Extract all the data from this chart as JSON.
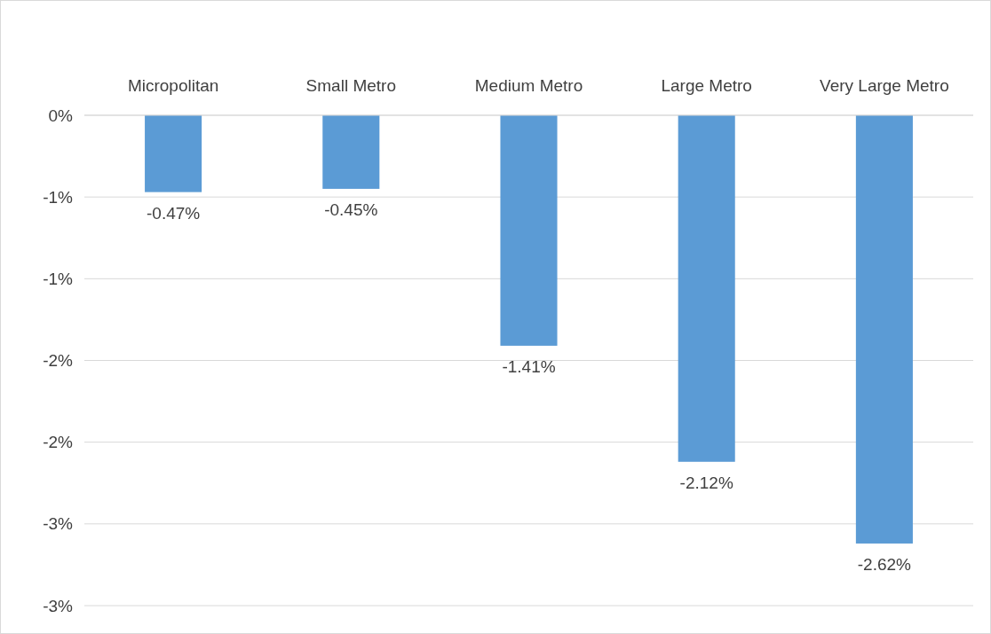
{
  "chart_data": {
    "type": "bar",
    "categories": [
      "Micropolitan",
      "Small Metro",
      "Medium Metro",
      "Large Metro",
      "Very Large Metro"
    ],
    "values": [
      -0.47,
      -0.45,
      -1.41,
      -2.12,
      -2.62
    ],
    "color": "#5b9bd5",
    "value_labels": [
      "-0.47%",
      "-0.45%",
      "-1.41%",
      "-2.12%",
      "-2.62%"
    ],
    "ylim": [
      -3,
      0
    ],
    "yticks": [
      {
        "value": 0,
        "label": "0%"
      },
      {
        "value": -0.5,
        "label": "-1%"
      },
      {
        "value": -1,
        "label": "-1%"
      },
      {
        "value": -1.5,
        "label": "-2%"
      },
      {
        "value": -2,
        "label": "-2%"
      },
      {
        "value": -2.5,
        "label": "-3%"
      },
      {
        "value": -3,
        "label": "-3%"
      }
    ],
    "grid": "y"
  }
}
